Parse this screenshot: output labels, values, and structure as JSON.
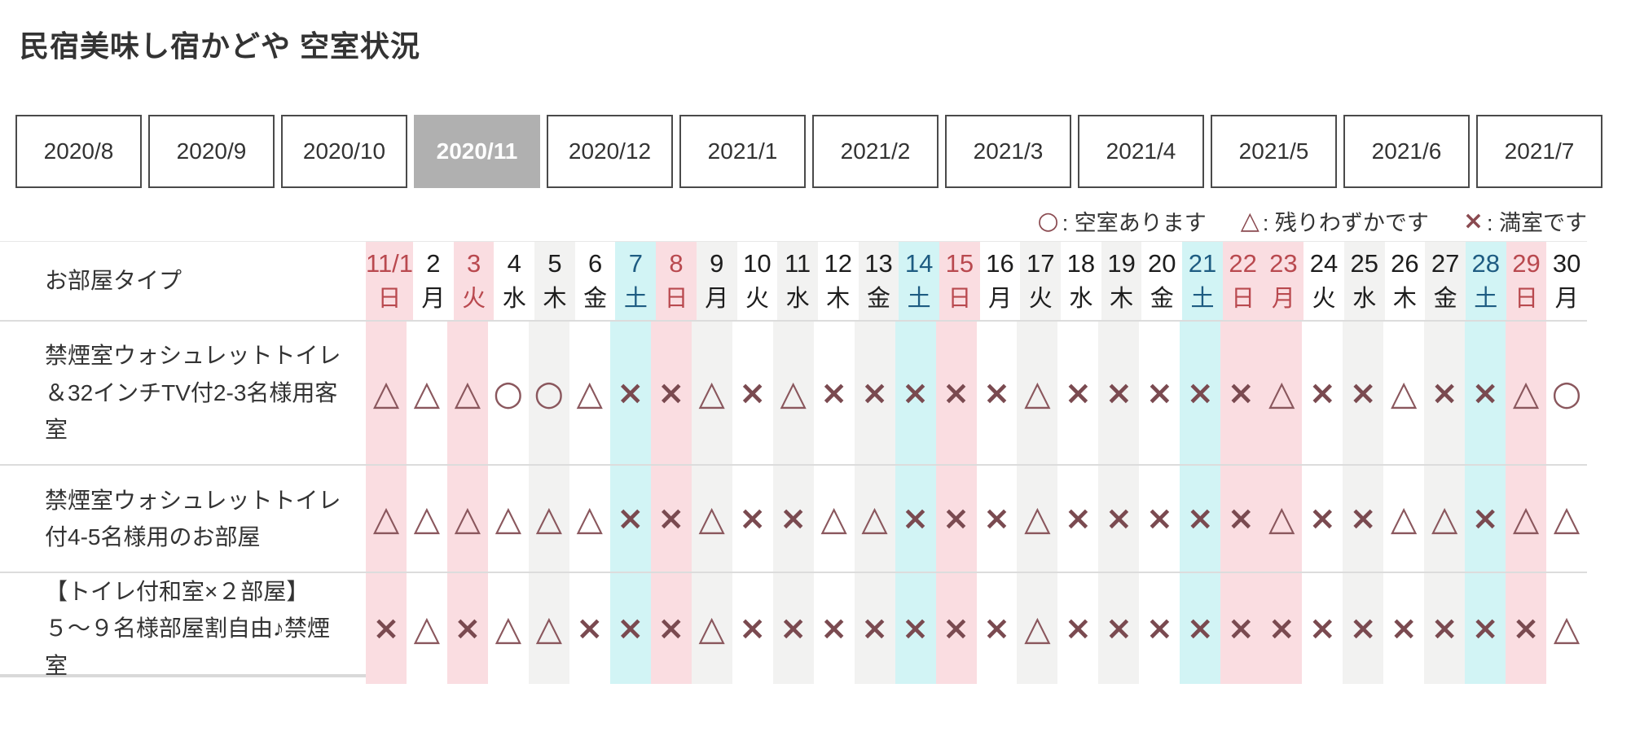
{
  "page": {
    "title": "民宿美味し宿かどや 空室状況"
  },
  "tabs": [
    {
      "label": "2020/8",
      "selected": false
    },
    {
      "label": "2020/9",
      "selected": false
    },
    {
      "label": "2020/10",
      "selected": false
    },
    {
      "label": "2020/11",
      "selected": true
    },
    {
      "label": "2020/12",
      "selected": false
    },
    {
      "label": "2021/1",
      "selected": false
    },
    {
      "label": "2021/2",
      "selected": false
    },
    {
      "label": "2021/3",
      "selected": false
    },
    {
      "label": "2021/4",
      "selected": false
    },
    {
      "label": "2021/5",
      "selected": false
    },
    {
      "label": "2021/6",
      "selected": false
    },
    {
      "label": "2021/7",
      "selected": false
    }
  ],
  "legend": [
    {
      "symbol": "○",
      "label": ": 空室あります"
    },
    {
      "symbol": "△",
      "label": ": 残りわずかです"
    },
    {
      "symbol": "×",
      "label": ": 満室です"
    }
  ],
  "table": {
    "corner_label": "お部屋タイプ",
    "days": [
      {
        "date": "11/1",
        "dow": "日",
        "kind": "sun"
      },
      {
        "date": "2",
        "dow": "月",
        "kind": "even"
      },
      {
        "date": "3",
        "dow": "火",
        "kind": "sun"
      },
      {
        "date": "4",
        "dow": "水",
        "kind": "even"
      },
      {
        "date": "5",
        "dow": "木",
        "kind": "odd"
      },
      {
        "date": "6",
        "dow": "金",
        "kind": "even"
      },
      {
        "date": "7",
        "dow": "土",
        "kind": "sat"
      },
      {
        "date": "8",
        "dow": "日",
        "kind": "sun"
      },
      {
        "date": "9",
        "dow": "月",
        "kind": "odd"
      },
      {
        "date": "10",
        "dow": "火",
        "kind": "even"
      },
      {
        "date": "11",
        "dow": "水",
        "kind": "odd"
      },
      {
        "date": "12",
        "dow": "木",
        "kind": "even"
      },
      {
        "date": "13",
        "dow": "金",
        "kind": "odd"
      },
      {
        "date": "14",
        "dow": "土",
        "kind": "sat"
      },
      {
        "date": "15",
        "dow": "日",
        "kind": "sun"
      },
      {
        "date": "16",
        "dow": "月",
        "kind": "even"
      },
      {
        "date": "17",
        "dow": "火",
        "kind": "odd"
      },
      {
        "date": "18",
        "dow": "水",
        "kind": "even"
      },
      {
        "date": "19",
        "dow": "木",
        "kind": "odd"
      },
      {
        "date": "20",
        "dow": "金",
        "kind": "even"
      },
      {
        "date": "21",
        "dow": "土",
        "kind": "sat"
      },
      {
        "date": "22",
        "dow": "日",
        "kind": "sun"
      },
      {
        "date": "23",
        "dow": "月",
        "kind": "sun"
      },
      {
        "date": "24",
        "dow": "火",
        "kind": "even"
      },
      {
        "date": "25",
        "dow": "水",
        "kind": "odd"
      },
      {
        "date": "26",
        "dow": "木",
        "kind": "even"
      },
      {
        "date": "27",
        "dow": "金",
        "kind": "odd"
      },
      {
        "date": "28",
        "dow": "土",
        "kind": "sat"
      },
      {
        "date": "29",
        "dow": "日",
        "kind": "sun"
      },
      {
        "date": "30",
        "dow": "月",
        "kind": "even"
      }
    ],
    "rooms": [
      {
        "name": "禁煙室ウォシュレットトイレ＆32インチTV付2-3名様用客室",
        "availability": [
          "△",
          "△",
          "△",
          "○",
          "○",
          "△",
          "×",
          "×",
          "△",
          "×",
          "△",
          "×",
          "×",
          "×",
          "×",
          "×",
          "△",
          "×",
          "×",
          "×",
          "×",
          "×",
          "△",
          "×",
          "×",
          "△",
          "×",
          "×",
          "△",
          "○"
        ]
      },
      {
        "name": "禁煙室ウォシュレットトイレ付4-5名様用のお部屋",
        "availability": [
          "△",
          "△",
          "△",
          "△",
          "△",
          "△",
          "×",
          "×",
          "△",
          "×",
          "×",
          "△",
          "△",
          "×",
          "×",
          "×",
          "△",
          "×",
          "×",
          "×",
          "×",
          "×",
          "△",
          "×",
          "×",
          "△",
          "△",
          "×",
          "△",
          "△"
        ]
      },
      {
        "name": "【トイレ付和室×２部屋】５〜９名様部屋割自由♪禁煙室",
        "availability": [
          "×",
          "△",
          "×",
          "△",
          "△",
          "×",
          "×",
          "×",
          "△",
          "×",
          "×",
          "×",
          "×",
          "×",
          "×",
          "×",
          "△",
          "×",
          "×",
          "×",
          "×",
          "×",
          "×",
          "×",
          "×",
          "×",
          "×",
          "×",
          "×",
          "△"
        ]
      }
    ]
  },
  "colors": {
    "sunday_bg": "#fadde1",
    "sunday_text": "#b9494f",
    "saturday_bg": "#d2f4f5",
    "saturday_text": "#1e5c82",
    "stripe_bg": "#f2f2f1",
    "symbol_color": "#8a575d",
    "symbol_x_color": "#7a4a50",
    "selected_tab_bg": "#b0b0b0"
  }
}
